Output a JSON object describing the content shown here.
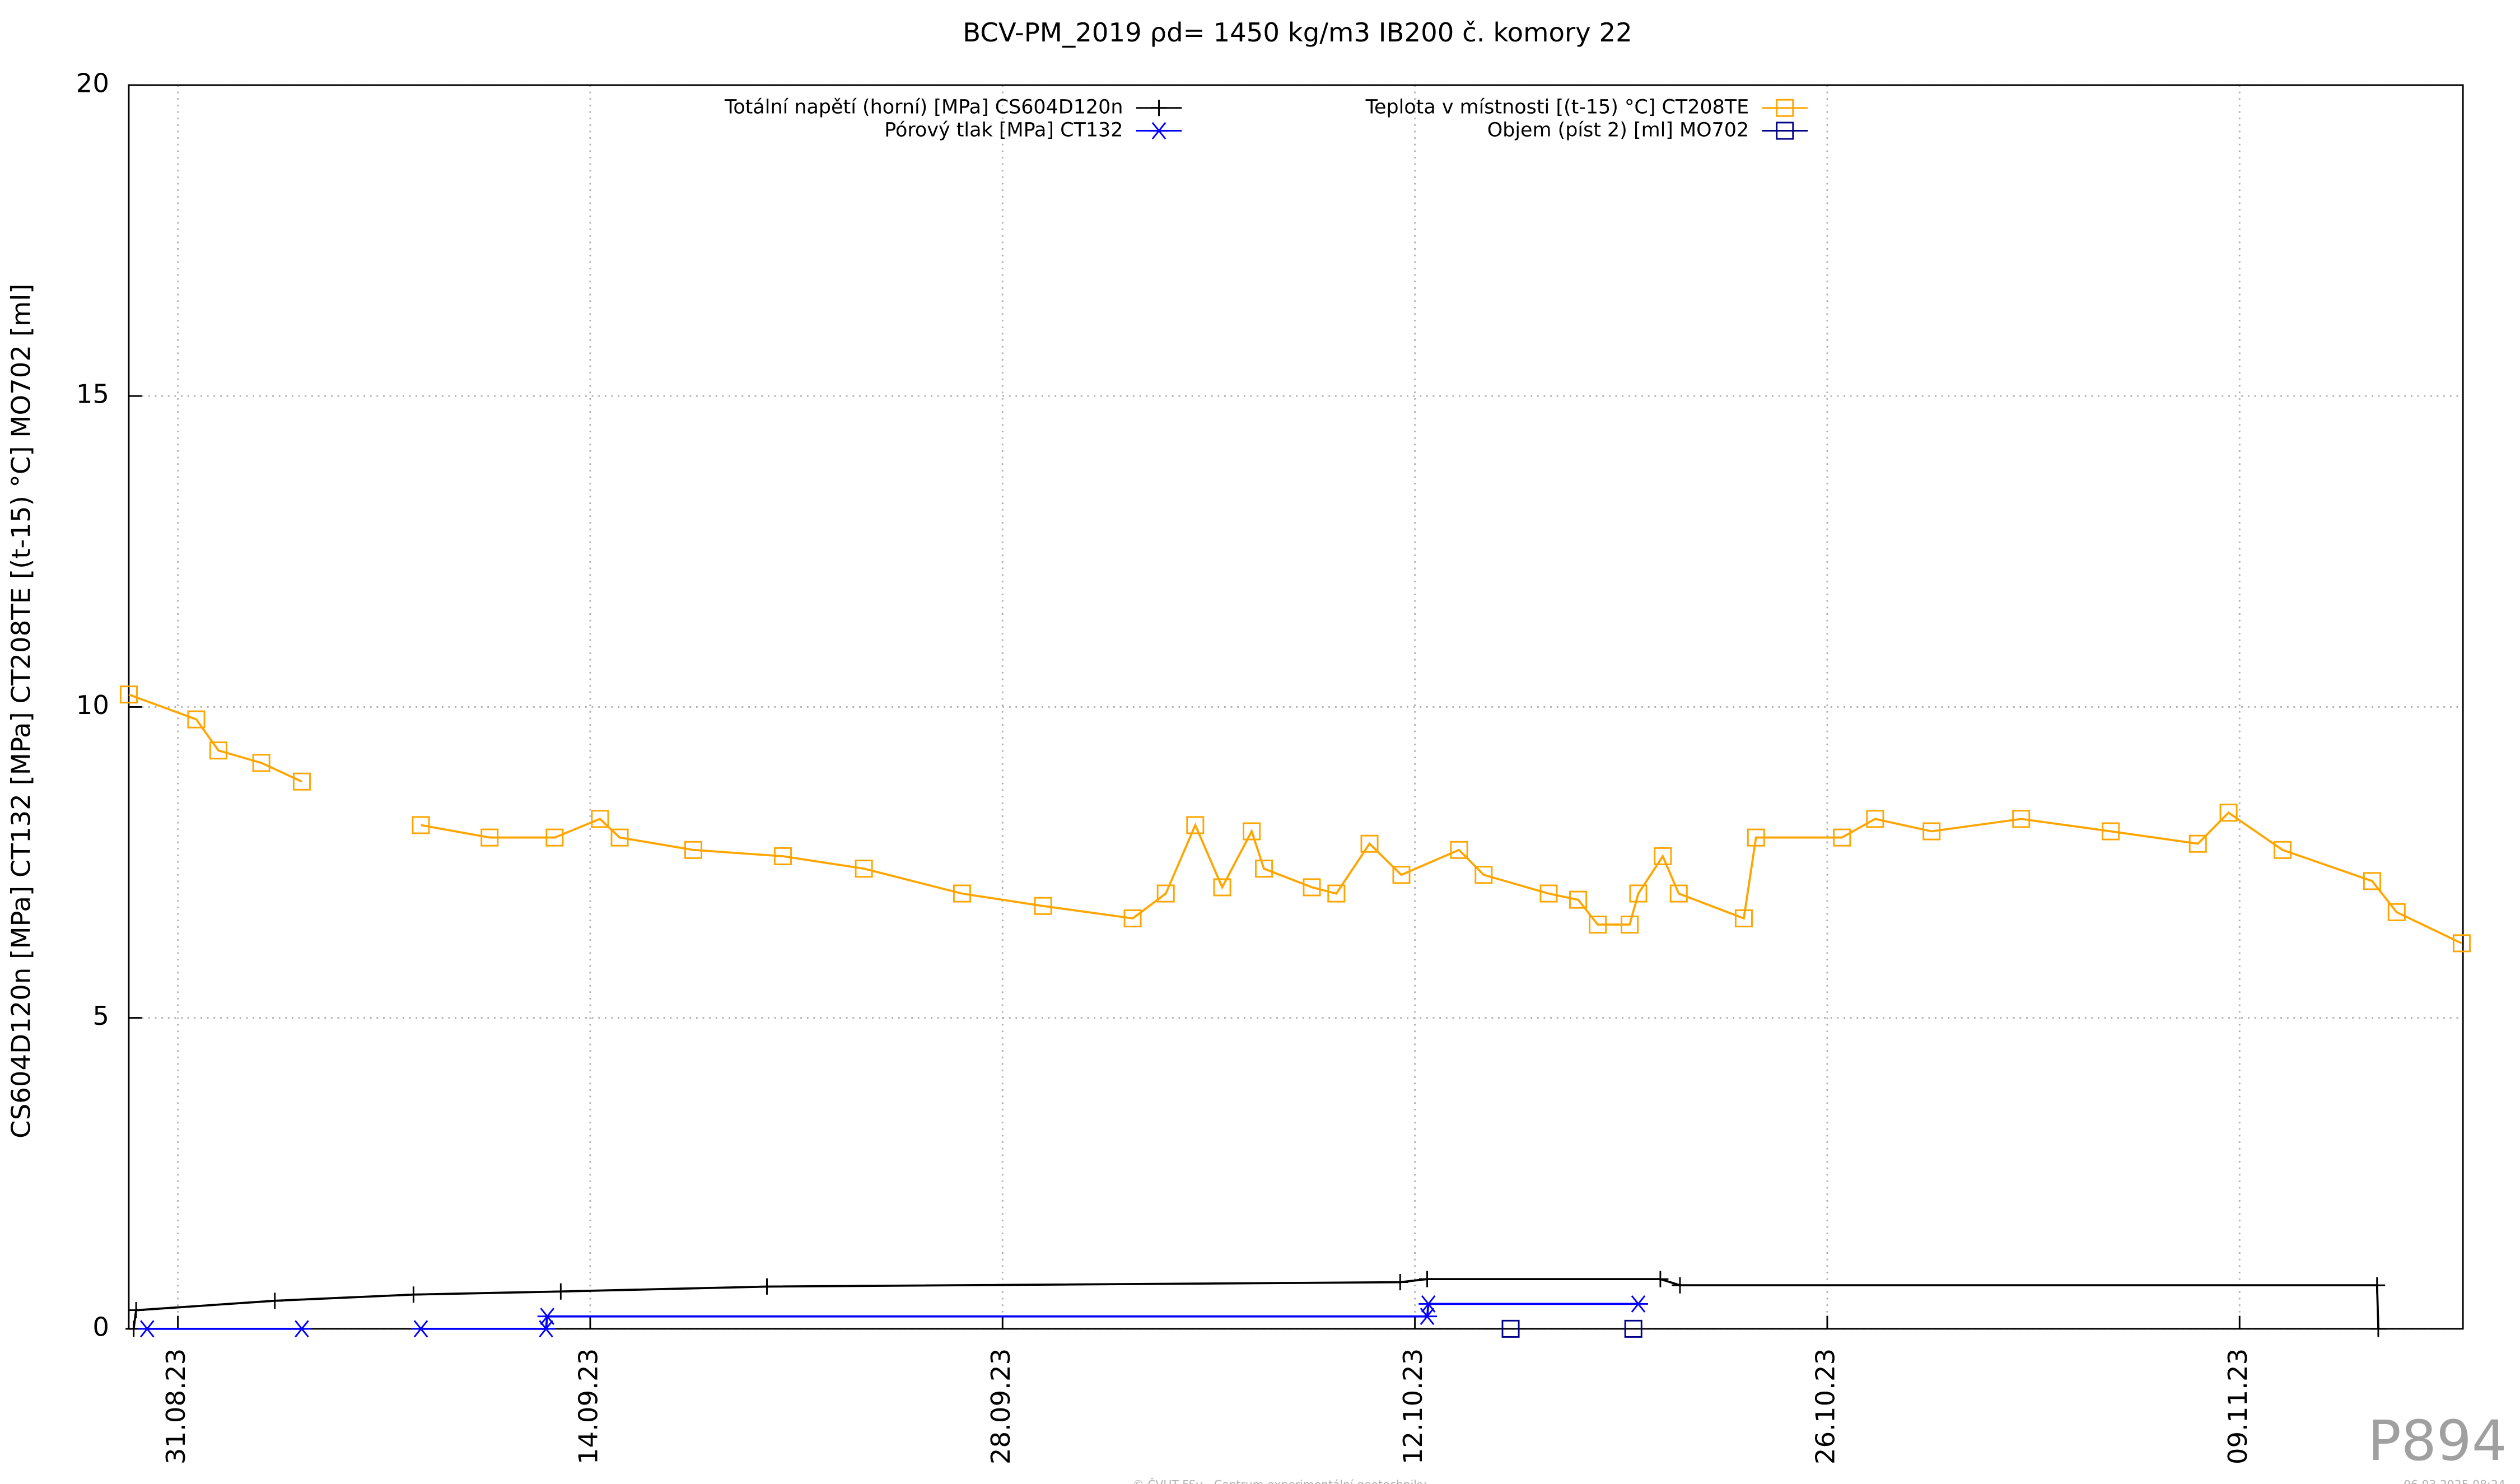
{
  "chart_data": {
    "type": "line",
    "title": "BCV-PM_2019 ρd= 1450 kg/m3 IB200 č. komory 22",
    "y_label": "CS604D120n [MPa] CT132 [MPa] CT208TE [(t-15) °C] MO702 [ml]",
    "watermark": "P894",
    "footer": "© ČVUT FSv - Centrum experimentální geotechniky",
    "timestamp": "06.03.2025 08:24",
    "grid": true,
    "xlim": [
      "2023-08-29T08:00",
      "2023-11-16T14:00"
    ],
    "xticks": [
      {
        "value": "2023-08-31T00:00",
        "label": "31.08.23"
      },
      {
        "value": "2023-09-14T00:00",
        "label": "14.09.23"
      },
      {
        "value": "2023-09-28T00:00",
        "label": "28.09.23"
      },
      {
        "value": "2023-10-12T00:00",
        "label": "12.10.23"
      },
      {
        "value": "2023-10-26T00:00",
        "label": "26.10.23"
      },
      {
        "value": "2023-11-09T00:00",
        "label": "09.11.23"
      }
    ],
    "ylim": [
      0,
      20
    ],
    "yticks": [
      0,
      5,
      10,
      15,
      20
    ],
    "series": [
      {
        "name": "Totální napětí (horní) [MPa] CS604D120n",
        "color": "#000000",
        "marker": "plus",
        "x": [
          "2023-08-29T12:00",
          "2023-08-29T14:00",
          "2023-09-03T07:00",
          "2023-09-08T00:00",
          "2023-09-13T00:00",
          "2023-09-20T00:00",
          "2023-10-11T12:00",
          "2023-10-12T10:00",
          "2023-10-20T08:00",
          "2023-10-21T00:00",
          "2023-11-13T16:00",
          "2023-11-13T17:00"
        ],
        "values": [
          0,
          0.3,
          0.45,
          0.55,
          0.6,
          0.68,
          0.75,
          0.8,
          0.8,
          0.7,
          0.7,
          0
        ]
      },
      {
        "name": "Pórový tlak [MPa] CT132",
        "color": "#0000ff",
        "marker": "star",
        "x": [
          "2023-08-29T23:00",
          "2023-09-04T05:00",
          null,
          "2023-09-08T06:00",
          "2023-09-12T12:00",
          "2023-09-12T13:00",
          "2023-10-12T10:00",
          "2023-10-12T11:00",
          "2023-10-19T14:00"
        ],
        "values": [
          0,
          0,
          null,
          0,
          0,
          0.2,
          0.2,
          0.4,
          0.4
        ]
      },
      {
        "name": "Teplota v místnosti [(t-15) °C] CT208TE",
        "color": "#ffa500",
        "marker": "square",
        "x": [
          "2023-08-29T08:00",
          "2023-08-31T15:00",
          "2023-09-01T09:00",
          "2023-09-02T20:00",
          "2023-09-04T05:00",
          null,
          "2023-09-08T06:00",
          "2023-09-10T14:00",
          "2023-09-12T19:00",
          "2023-09-14T08:00",
          "2023-09-15T00:00",
          "2023-09-17T12:00",
          "2023-09-20T13:00",
          "2023-09-23T07:00",
          "2023-09-26T15:00",
          "2023-09-29T09:00",
          "2023-10-02T10:00",
          "2023-10-03T13:00",
          "2023-10-04T13:00",
          "2023-10-05T11:00",
          "2023-10-06T11:00",
          "2023-10-06T21:00",
          "2023-10-08T12:00",
          "2023-10-09T08:00",
          "2023-10-10T11:00",
          "2023-10-11T13:00",
          "2023-10-13T12:00",
          "2023-10-14T08:00",
          "2023-10-16T13:00",
          "2023-10-17T13:00",
          "2023-10-18T05:00",
          "2023-10-19T07:00",
          "2023-10-19T14:00",
          "2023-10-20T10:00",
          "2023-10-20T23:00",
          "2023-10-23T04:00",
          "2023-10-23T14:00",
          "2023-10-26T12:00",
          "2023-10-27T15:00",
          "2023-10-29T13:00",
          "2023-11-01T14:00",
          "2023-11-04T15:00",
          "2023-11-07T14:00",
          "2023-11-08T15:00",
          "2023-11-10T11:00",
          "2023-11-13T12:00",
          "2023-11-14T08:00",
          "2023-11-16T13:00"
        ],
        "values": [
          10.2,
          9.8,
          9.3,
          9.1,
          8.8,
          null,
          8.1,
          7.9,
          7.9,
          8.2,
          7.9,
          7.7,
          7.6,
          7.4,
          7.0,
          6.8,
          6.6,
          7.0,
          8.1,
          7.1,
          8.0,
          7.4,
          7.1,
          7.0,
          7.8,
          7.3,
          7.7,
          7.3,
          7.0,
          6.9,
          6.5,
          6.5,
          7.0,
          7.6,
          7.0,
          6.6,
          7.9,
          7.9,
          8.2,
          8.0,
          8.2,
          8.0,
          7.8,
          8.3,
          7.7,
          7.2,
          6.7,
          6.2
        ]
      },
      {
        "name": "Objem (píst 2) [ml] MO702",
        "color": "#00008b",
        "marker": "square",
        "x": [
          "2023-10-15T06:00",
          "2023-10-19T10:00"
        ],
        "values": [
          0,
          0
        ]
      }
    ]
  }
}
